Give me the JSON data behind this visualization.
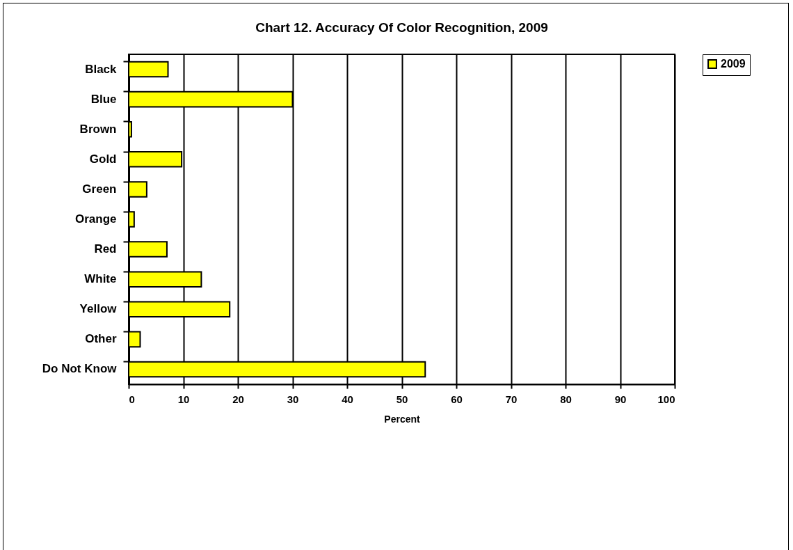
{
  "chart_data": {
    "type": "bar",
    "orientation": "horizontal",
    "title": "Chart 12.  Accuracy Of Color Recognition, 2009",
    "xlabel": "Percent",
    "categories": [
      "Black",
      "Blue",
      "Brown",
      "Gold",
      "Green",
      "Orange",
      "Red",
      "White",
      "Yellow",
      "Other",
      "Do Not Know"
    ],
    "series": [
      {
        "name": "2009",
        "color": "#ffff00",
        "values": [
          7.2,
          30.0,
          0.5,
          9.7,
          3.3,
          1.0,
          7.0,
          13.3,
          18.5,
          2.1,
          54.3
        ]
      }
    ],
    "xlim": [
      0,
      100
    ],
    "xticks": [
      0,
      10,
      20,
      30,
      40,
      50,
      60,
      70,
      80,
      90,
      100
    ],
    "grid": "x",
    "legend": "right"
  }
}
